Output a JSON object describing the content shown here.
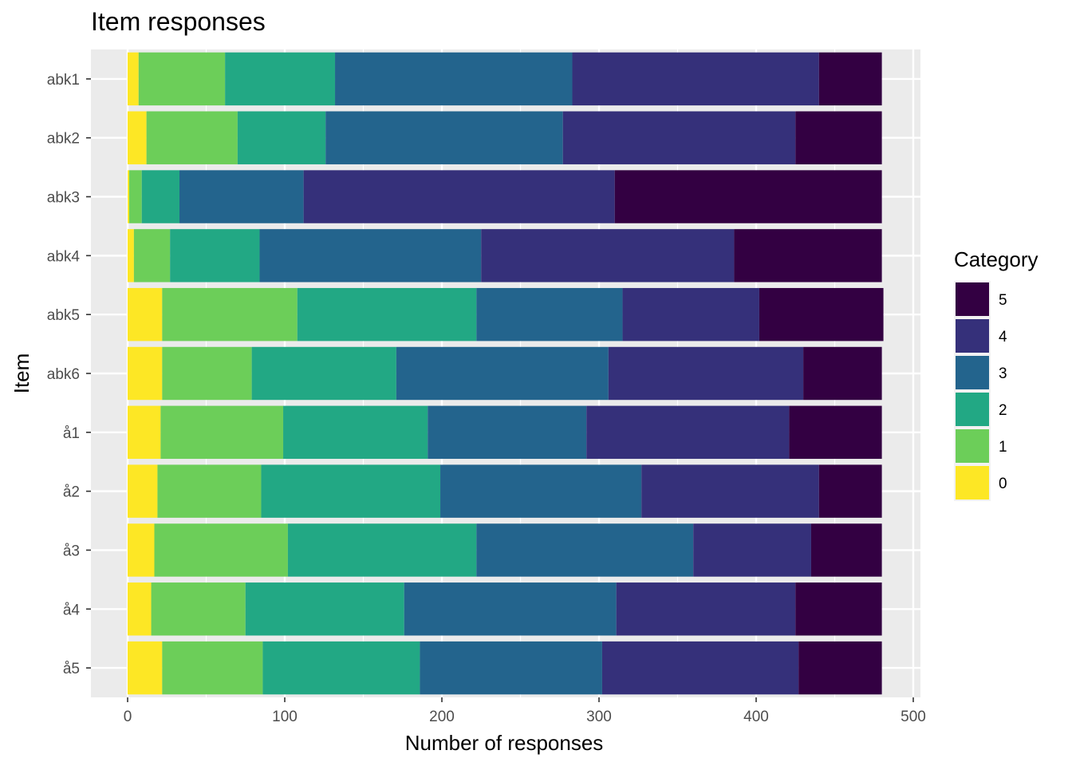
{
  "chart_data": {
    "type": "bar",
    "orientation": "horizontal",
    "stacked": true,
    "title": "Item responses",
    "xlabel": "Number of responses",
    "ylabel": "Item",
    "xlim": [
      0,
      500
    ],
    "x_ticks": [
      0,
      100,
      200,
      300,
      400,
      500
    ],
    "grid": true,
    "legend": {
      "title": "Category",
      "placement": "right"
    },
    "categories": [
      "abk1",
      "abk2",
      "abk3",
      "abk4",
      "abk5",
      "abk6",
      "å1",
      "å2",
      "å3",
      "å4",
      "å5"
    ],
    "series": [
      {
        "name": "0",
        "color": "#FDE725",
        "values": [
          7,
          12,
          1,
          4,
          22,
          22,
          21,
          19,
          17,
          15,
          22
        ]
      },
      {
        "name": "1",
        "color": "#6CCE59",
        "values": [
          55,
          58,
          8,
          23,
          86,
          57,
          78,
          66,
          85,
          60,
          64
        ]
      },
      {
        "name": "2",
        "color": "#22A884",
        "values": [
          70,
          56,
          24,
          57,
          114,
          92,
          92,
          114,
          120,
          101,
          100
        ]
      },
      {
        "name": "3",
        "color": "#23648D",
        "values": [
          151,
          151,
          79,
          141,
          93,
          135,
          101,
          128,
          138,
          135,
          116
        ]
      },
      {
        "name": "4",
        "color": "#35307A",
        "values": [
          157,
          148,
          198,
          161,
          87,
          124,
          129,
          113,
          75,
          114,
          125
        ]
      },
      {
        "name": "5",
        "color": "#330042",
        "values": [
          40,
          55,
          170,
          94,
          79,
          50,
          59,
          40,
          45,
          55,
          53
        ]
      }
    ],
    "legend_order": [
      "5",
      "4",
      "3",
      "2",
      "1",
      "0"
    ]
  }
}
